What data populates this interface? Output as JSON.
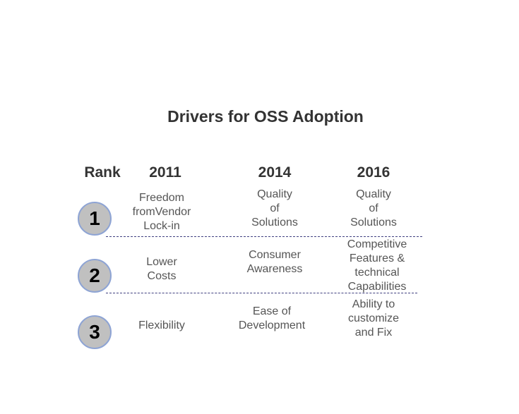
{
  "title": "Drivers for OSS Adoption",
  "headers": {
    "rank": "Rank",
    "years": [
      "2011",
      "2014",
      "2016"
    ]
  },
  "rows": [
    {
      "rank": "1",
      "cells": [
        "Freedom\nfromVendor\nLock-in",
        "Quality\nof\nSolutions",
        "Quality\nof\nSolutions"
      ]
    },
    {
      "rank": "2",
      "cells": [
        "Lower\nCosts",
        "Consumer\nAwareness",
        "Competitive\nFeatures &\ntechnical\nCapabilities"
      ]
    },
    {
      "rank": "3",
      "cells": [
        "Flexibility",
        "Ease of\nDevelopment",
        "Ability to\ncustomize\nand Fix"
      ]
    }
  ],
  "colors": {
    "circle_fill": "#c0c0c0",
    "circle_border": "#8ea4d4",
    "divider": "#404080",
    "text": "#555555",
    "heading": "#333333"
  }
}
